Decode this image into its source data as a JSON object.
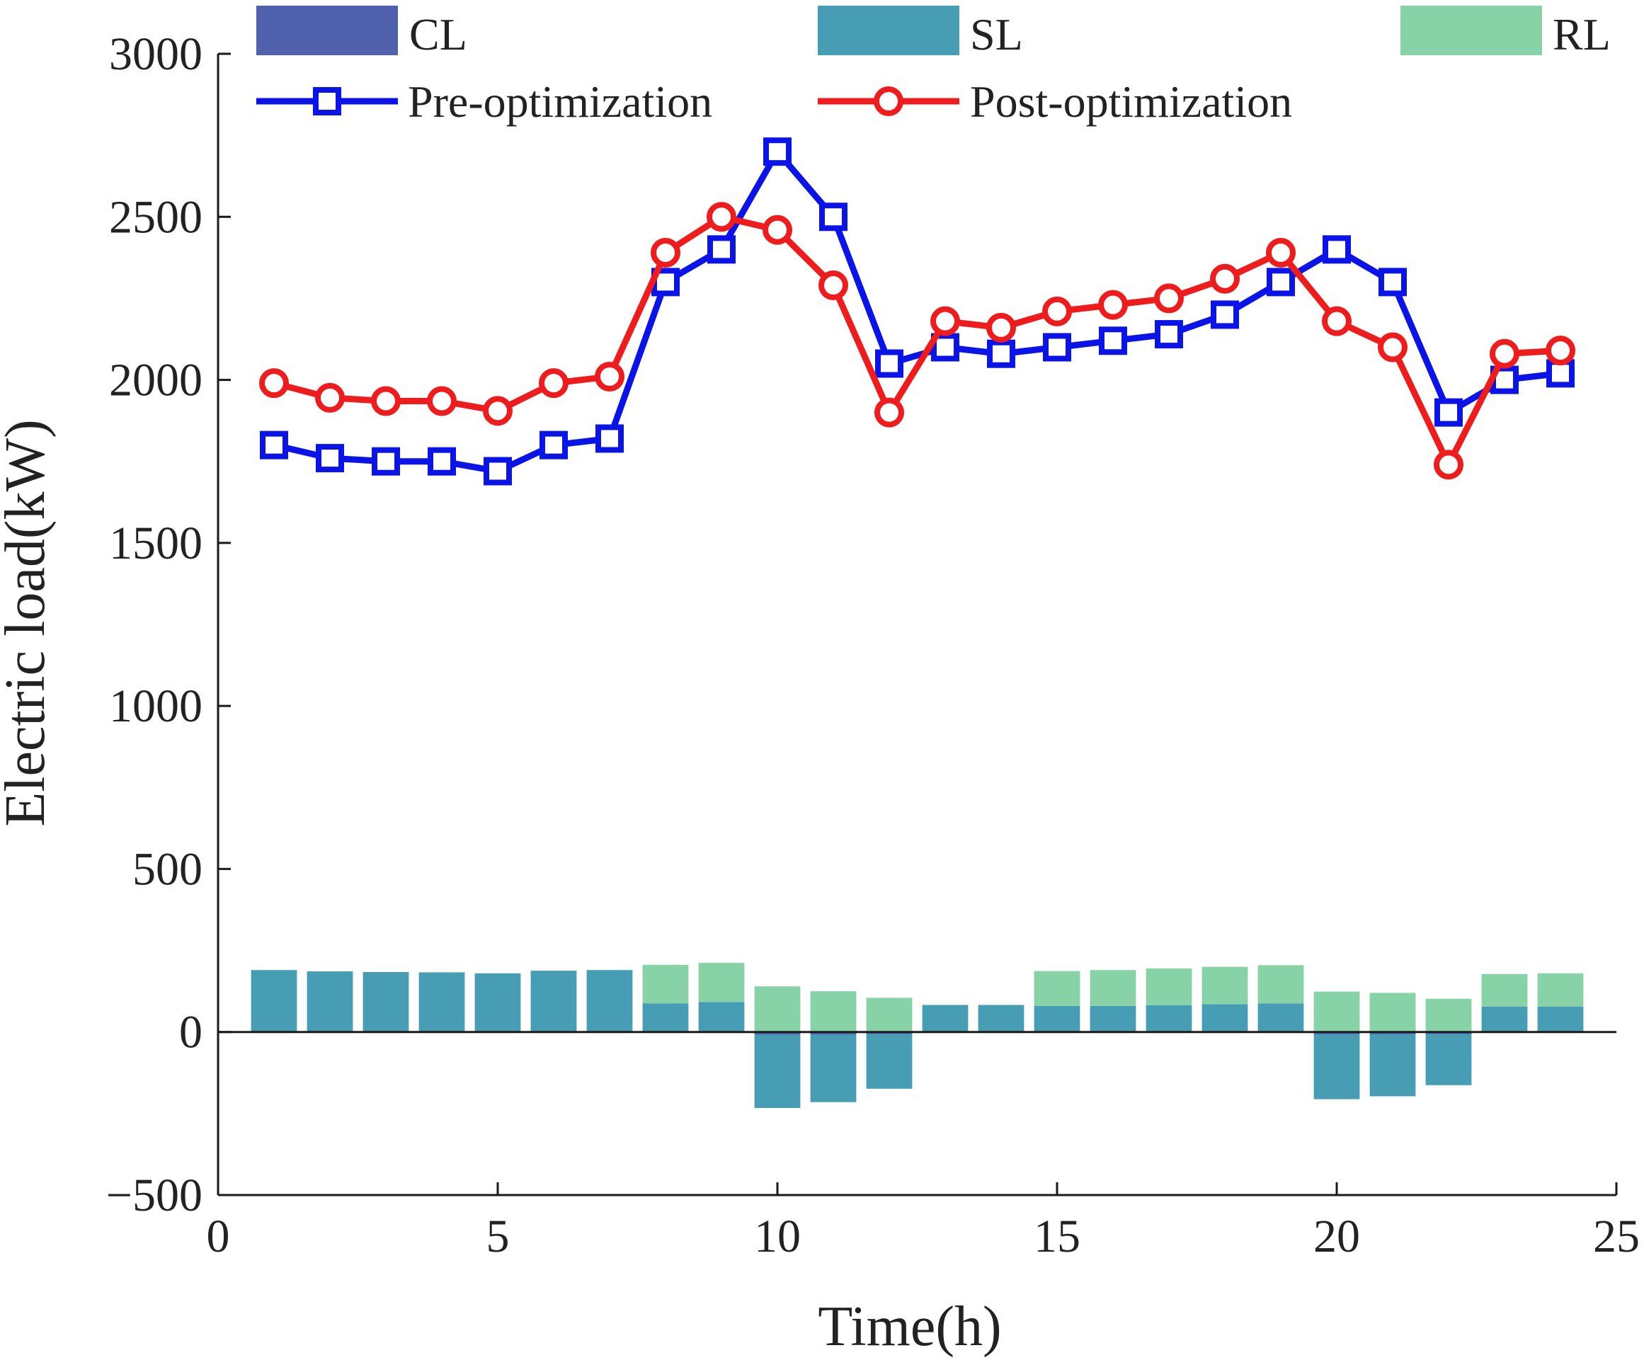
{
  "chart_data": {
    "type": "bar+line",
    "title": "",
    "xlabel": "Time(h)",
    "ylabel": "Electric load(kW)",
    "xlim": [
      0,
      25
    ],
    "ylim": [
      -500,
      3000
    ],
    "x_ticks": [
      0,
      5,
      10,
      15,
      20,
      25
    ],
    "y_ticks": [
      -500,
      0,
      500,
      1000,
      1500,
      2000,
      2500,
      3000
    ],
    "x_tick_labels": [
      "0",
      "5",
      "10",
      "15",
      "20",
      "25"
    ],
    "y_tick_labels": [
      "−500",
      "0",
      "500",
      "1000",
      "1500",
      "2000",
      "2500",
      "3000"
    ],
    "x": [
      1,
      2,
      3,
      4,
      5,
      6,
      7,
      8,
      9,
      10,
      11,
      12,
      13,
      14,
      15,
      16,
      17,
      18,
      19,
      20,
      21,
      22,
      23,
      24
    ],
    "bar_series": [
      {
        "name": "CL",
        "color": "#4f60ad",
        "values": [
          0,
          0,
          0,
          0,
          0,
          0,
          0,
          0,
          0,
          -8,
          -8,
          -6,
          0,
          0,
          0,
          0,
          0,
          0,
          0,
          -7,
          -7,
          -6,
          0,
          0
        ]
      },
      {
        "name": "SL",
        "color": "#479eb4",
        "values": [
          190,
          186,
          184,
          183,
          180,
          188,
          190,
          88,
          92,
          -225,
          -207,
          -168,
          83,
          83,
          80,
          80,
          82,
          85,
          88,
          -199,
          -190,
          -157,
          78,
          78
        ]
      },
      {
        "name": "RL",
        "color": "#88d2a8",
        "values": [
          0,
          0,
          0,
          0,
          0,
          0,
          0,
          118,
          120,
          140,
          125,
          105,
          0,
          0,
          107,
          110,
          113,
          115,
          117,
          124,
          120,
          102,
          100,
          102
        ]
      }
    ],
    "line_series": [
      {
        "name": "Pre-optimization",
        "color": "#0a14e8",
        "marker": "square",
        "values": [
          1800,
          1760,
          1750,
          1750,
          1720,
          1800,
          1820,
          2300,
          2400,
          2700,
          2500,
          2050,
          2100,
          2080,
          2100,
          2120,
          2140,
          2200,
          2300,
          2400,
          2300,
          1900,
          2000,
          2020
        ]
      },
      {
        "name": "Post-optimization",
        "color": "#ee1c1c",
        "marker": "circle",
        "values": [
          1990,
          1945,
          1935,
          1935,
          1905,
          1990,
          2010,
          2390,
          2500,
          2460,
          2290,
          1900,
          2180,
          2160,
          2210,
          2230,
          2250,
          2310,
          2390,
          2180,
          2100,
          1740,
          2080,
          2090
        ]
      }
    ],
    "legend": {
      "placement": "top",
      "entries": [
        "CL",
        "SL",
        "RL",
        "Pre-optimization",
        "Post-optimization"
      ]
    }
  }
}
